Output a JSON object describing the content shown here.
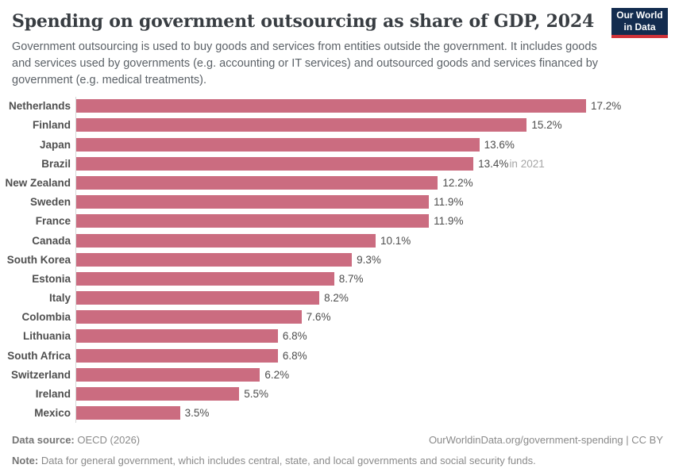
{
  "header": {
    "title": "Spending on government outsourcing as share of GDP, 2024",
    "subtitle": "Government outsourcing is used to buy goods and services from entities outside the government. It includes goods and services used by governments (e.g. accounting or IT services) and outsourced goods and services financed by government (e.g. medical treatments).",
    "logo": {
      "line1": "Our World",
      "line2": "in Data"
    }
  },
  "chart_data": {
    "type": "bar",
    "orientation": "horizontal",
    "title": "Spending on government outsourcing as share of GDP, 2024",
    "unit": "%",
    "xlim": [
      0,
      17.2
    ],
    "grid": false,
    "legend": "none",
    "bar_color": "#cb6c80",
    "categories": [
      "Netherlands",
      "Finland",
      "Japan",
      "Brazil",
      "New Zealand",
      "Sweden",
      "France",
      "Canada",
      "South Korea",
      "Estonia",
      "Italy",
      "Colombia",
      "Lithuania",
      "South Africa",
      "Switzerland",
      "Ireland",
      "Mexico"
    ],
    "values": [
      17.2,
      15.2,
      13.6,
      13.4,
      12.2,
      11.9,
      11.9,
      10.1,
      9.3,
      8.7,
      8.2,
      7.6,
      6.8,
      6.8,
      6.2,
      5.5,
      3.5
    ],
    "value_labels": [
      "17.2%",
      "15.2%",
      "13.6%",
      "13.4%",
      "12.2%",
      "11.9%",
      "11.9%",
      "10.1%",
      "9.3%",
      "8.7%",
      "8.2%",
      "7.6%",
      "6.8%",
      "6.8%",
      "6.2%",
      "5.5%",
      "3.5%"
    ],
    "label_suffixes": [
      "",
      "",
      "",
      "in 2021",
      "",
      "",
      "",
      "",
      "",
      "",
      "",
      "",
      "",
      "",
      "",
      "",
      ""
    ]
  },
  "footer": {
    "source_label": "Data source:",
    "source_value": "OECD (2026)",
    "link": "OurWorldinData.org/government-spending | CC BY",
    "note_label": "Note:",
    "note_value": "Data for general government, which includes central, state, and local governments and social security funds."
  },
  "colors": {
    "bar": "#cb6c80",
    "axis_line": "#d7d7d7",
    "title_text": "#383d42",
    "subtitle_text": "#5b6167",
    "country_label": "#4f4f4f",
    "value_label": "#4d4d4d",
    "value_suffix": "#a6a6a6",
    "footer_text": "#8a8a8a",
    "logo_background": "#132c4f",
    "logo_accent": "#cf3239"
  }
}
